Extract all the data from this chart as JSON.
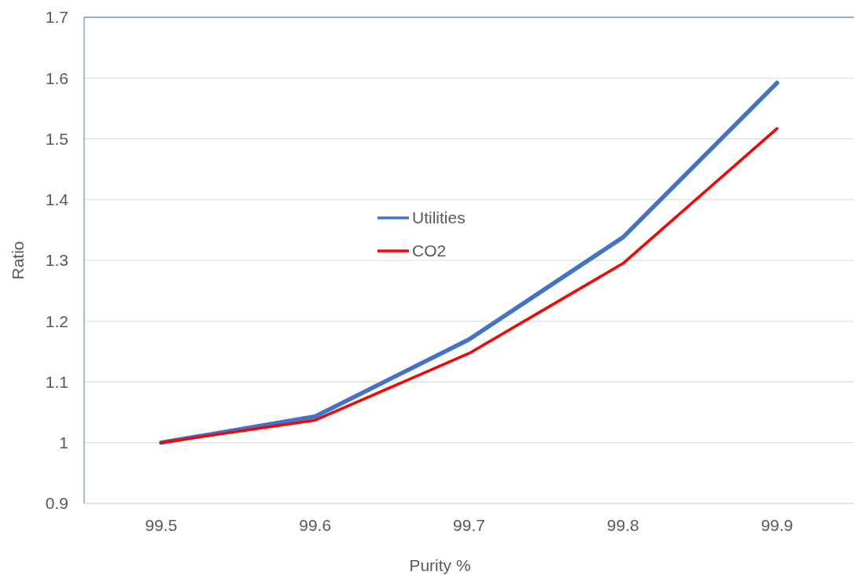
{
  "chart_data": {
    "type": "line",
    "xlabel": "Purity %",
    "ylabel": "Ratio",
    "categories": [
      "99.5",
      "99.6",
      "99.7",
      "99.8",
      "99.9"
    ],
    "series": [
      {
        "name": "Utilities",
        "color": "#4472c4",
        "values": [
          1,
          1.043,
          1.17,
          1.338,
          1.592
        ]
      },
      {
        "name": "CO2",
        "color": "#ff0000",
        "values": [
          1,
          1.037,
          1.147,
          1.295,
          1.517
        ]
      }
    ],
    "ylim": [
      0.9,
      1.7
    ],
    "yticks": [
      0.9,
      1,
      1.1,
      1.2,
      1.3,
      1.4,
      1.5,
      1.6,
      1.7
    ],
    "grid": "y",
    "legend": "center",
    "marker": "none",
    "line_style": "solid"
  }
}
